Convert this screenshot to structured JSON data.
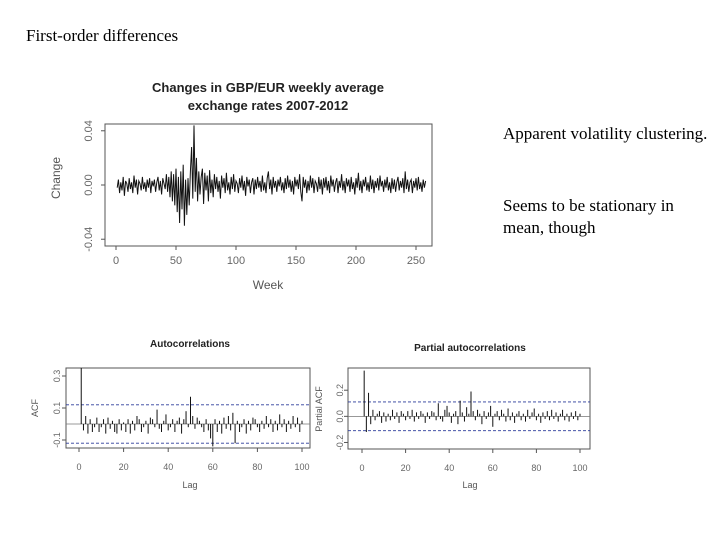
{
  "slide": {
    "title": "First-order differences",
    "notes": [
      "Apparent volatility clustering.",
      "Seems to be stationary in mean, though"
    ]
  },
  "colors": {
    "series": "#111111",
    "frame": "#555555",
    "band": "#2a3a9a",
    "text": "#000000"
  },
  "chart_data": [
    {
      "type": "line",
      "title": "Changes in GBP/EUR weekly average exchange rates 2007-2012",
      "title_lines": [
        "Changes in GBP/EUR weekly average",
        "exchange rates 2007-2012"
      ],
      "xlabel": "Week",
      "ylabel": "Change",
      "xlim": [
        0,
        260
      ],
      "ylim": [
        -0.045,
        0.045
      ],
      "xticks": [
        0,
        50,
        100,
        150,
        200,
        250
      ],
      "yticks": [
        -0.04,
        0.0,
        0.04
      ],
      "ytick_labels": [
        "-0.04",
        "0.00",
        "0.04"
      ],
      "series": [
        {
          "name": "Change",
          "x_start": 1,
          "values": [
            -0.002,
            0.004,
            -0.006,
            0.002,
            -0.004,
            0.006,
            -0.008,
            0.003,
            0.001,
            -0.005,
            0.005,
            -0.003,
            0.002,
            -0.006,
            0.007,
            -0.002,
            0.004,
            -0.007,
            0.003,
            0.001,
            -0.004,
            0.006,
            -0.003,
            0.002,
            -0.005,
            0.004,
            -0.002,
            0.005,
            -0.006,
            0.003,
            -0.001,
            0.004,
            -0.005,
            0.002,
            0.006,
            -0.004,
            0.003,
            -0.007,
            0.005,
            0.001,
            -0.003,
            0.008,
            -0.005,
            0.006,
            -0.009,
            0.01,
            -0.012,
            0.008,
            -0.015,
            0.012,
            -0.02,
            0.006,
            -0.028,
            0.01,
            -0.018,
            0.015,
            -0.03,
            0.004,
            -0.022,
            0.005,
            -0.015,
            0.01,
            0.028,
            -0.01,
            0.044,
            -0.005,
            0.02,
            -0.012,
            0.01,
            -0.007,
            0.006,
            0.012,
            -0.014,
            0.009,
            -0.004,
            0.007,
            -0.012,
            0.011,
            -0.006,
            0.004,
            -0.009,
            0.008,
            -0.003,
            0.006,
            -0.005,
            0.003,
            -0.01,
            0.007,
            -0.002,
            0.005,
            -0.006,
            0.009,
            -0.004,
            0.002,
            -0.007,
            0.006,
            -0.003,
            0.008,
            -0.005,
            0.003,
            0.001,
            -0.006,
            0.005,
            -0.002,
            0.007,
            -0.004,
            0.003,
            -0.008,
            0.006,
            -0.001,
            0.004,
            -0.006,
            0.002,
            0.005,
            -0.007,
            0.004,
            -0.003,
            0.006,
            -0.002,
            0.003,
            -0.005,
            0.007,
            -0.004,
            0.002,
            -0.006,
            0.005,
            0.01,
            -0.003,
            0.004,
            -0.007,
            0.006,
            -0.002,
            0.003,
            -0.005,
            0.004,
            -0.001,
            0.006,
            -0.004,
            0.002,
            -0.006,
            0.005,
            -0.003,
            0.007,
            -0.002,
            0.004,
            -0.005,
            0.003,
            -0.007,
            0.006,
            -0.001,
            0.004,
            -0.003,
            0.008,
            -0.005,
            -0.012,
            0.006,
            -0.002,
            0.004,
            -0.006,
            0.003,
            -0.004,
            0.007,
            -0.002,
            0.005,
            -0.006,
            0.003,
            0.001,
            -0.005,
            0.006,
            -0.003,
            0.004,
            -0.007,
            0.005,
            -0.002,
            0.006,
            -0.004,
            0.003,
            -0.006,
            0.007,
            -0.001,
            0.004,
            -0.005,
            0.002,
            0.005,
            -0.006,
            0.003,
            -0.002,
            0.008,
            -0.004,
            0.003,
            -0.006,
            0.005,
            -0.001,
            0.004,
            -0.005,
            0.006,
            -0.003,
            0.002,
            -0.007,
            0.005,
            -0.002,
            0.009,
            -0.004,
            0.003,
            -0.006,
            0.004,
            -0.001,
            0.006,
            -0.004,
            0.002,
            -0.005,
            0.007,
            -0.003,
            0.004,
            -0.006,
            0.003,
            -0.002,
            0.005,
            -0.004,
            0.007,
            -0.001,
            0.003,
            -0.005,
            0.004,
            -0.002,
            0.006,
            -0.004,
            0.002,
            -0.006,
            0.005,
            -0.003,
            0.004,
            -0.005,
            0.002,
            0.006,
            -0.004,
            0.003,
            -0.002,
            0.005,
            -0.006,
            0.01,
            -0.003,
            0.004,
            -0.005,
            0.002,
            0.004,
            -0.006,
            0.003,
            -0.002,
            0.005,
            -0.004,
            0.006,
            -0.003,
            0.002,
            -0.005,
            0.004,
            -0.002,
            0.003
          ]
        }
      ]
    },
    {
      "type": "bar",
      "title": "Autocorrelations",
      "xlabel": "Lag",
      "ylabel": "ACF",
      "xlim": [
        0,
        104
      ],
      "ylim": [
        -0.15,
        0.35
      ],
      "xticks": [
        0,
        20,
        40,
        60,
        80,
        100
      ],
      "yticks": [
        -0.1,
        0.1,
        0.3
      ],
      "ytick_labels": [
        "-0.1",
        "0.1",
        "0.3"
      ],
      "confidence_band": 0.12,
      "lags_start": 1,
      "values": [
        0.35,
        -0.04,
        0.05,
        -0.06,
        0.03,
        -0.05,
        -0.02,
        0.04,
        -0.05,
        -0.02,
        0.03,
        -0.06,
        0.04,
        -0.03,
        0.02,
        -0.05,
        -0.06,
        0.03,
        -0.04,
        0.01,
        -0.05,
        0.03,
        -0.06,
        0.02,
        -0.04,
        0.05,
        0.03,
        -0.05,
        -0.02,
        0.02,
        -0.06,
        0.04,
        0.03,
        -0.02,
        0.09,
        -0.03,
        -0.05,
        0.02,
        0.06,
        -0.04,
        -0.02,
        0.03,
        -0.05,
        0.02,
        0.04,
        -0.06,
        0.03,
        0.08,
        -0.02,
        0.17,
        0.05,
        -0.03,
        0.04,
        0.02,
        -0.02,
        -0.05,
        0.03,
        -0.04,
        -0.09,
        -0.14,
        0.03,
        -0.05,
        0.02,
        -0.06,
        0.04,
        -0.03,
        0.05,
        -0.04,
        0.07,
        -0.12,
        0.02,
        -0.05,
        -0.02,
        0.03,
        -0.06,
        0.02,
        -0.04,
        0.04,
        0.03,
        -0.02,
        -0.05,
        0.02,
        -0.03,
        0.05,
        -0.02,
        0.03,
        -0.05,
        0.02,
        -0.04,
        0.06,
        -0.02,
        0.03,
        -0.05,
        0.02,
        -0.03,
        0.05,
        -0.02,
        0.04,
        -0.05,
        0.02
      ]
    },
    {
      "type": "bar",
      "title": "Partial autocorrelations",
      "xlabel": "Lag",
      "ylabel": "Partial ACF",
      "xlim": [
        0,
        104
      ],
      "ylim": [
        -0.25,
        0.37
      ],
      "xticks": [
        0,
        20,
        40,
        60,
        80,
        100
      ],
      "yticks": [
        -0.2,
        0.0,
        0.2
      ],
      "ytick_labels": [
        "-0.2",
        "0.0",
        "0.2"
      ],
      "confidence_band": 0.11,
      "lags_start": 1,
      "values": [
        0.35,
        -0.12,
        0.18,
        -0.06,
        0.05,
        -0.03,
        0.02,
        0.04,
        -0.05,
        0.03,
        -0.04,
        0.02,
        -0.03,
        0.05,
        -0.02,
        0.03,
        -0.05,
        0.04,
        0.02,
        -0.03,
        0.04,
        -0.02,
        0.05,
        -0.04,
        0.03,
        -0.02,
        0.04,
        0.02,
        -0.05,
        0.03,
        -0.02,
        0.04,
        0.03,
        -0.03,
        0.1,
        -0.02,
        -0.04,
        0.05,
        0.08,
        0.03,
        -0.05,
        0.02,
        0.04,
        -0.06,
        0.12,
        0.03,
        -0.04,
        0.07,
        0.02,
        0.19,
        0.04,
        -0.03,
        0.05,
        0.02,
        -0.06,
        0.04,
        -0.02,
        0.03,
        0.08,
        -0.08,
        0.02,
        0.04,
        -0.03,
        0.05,
        0.02,
        -0.04,
        0.06,
        -0.03,
        0.03,
        -0.05,
        0.02,
        0.04,
        -0.03,
        0.02,
        -0.04,
        0.05,
        -0.02,
        0.03,
        0.06,
        -0.03,
        0.02,
        -0.05,
        0.03,
        -0.02,
        0.04,
        -0.03,
        0.05,
        -0.02,
        0.03,
        -0.04,
        0.02,
        0.05,
        -0.03,
        0.02,
        -0.04,
        0.03,
        -0.02,
        0.04,
        -0.03,
        0.02
      ]
    }
  ]
}
